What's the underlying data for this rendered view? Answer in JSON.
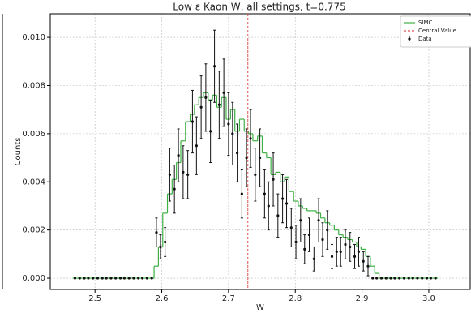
{
  "chart_data": {
    "type": "histogram-errorbar",
    "title": "Low ε Kaon W, all settings, t=0.775",
    "xlabel": "W",
    "ylabel": "Counts",
    "xlim": [
      2.433,
      3.062
    ],
    "ylim": [
      -0.00047,
      0.01098
    ],
    "xticks": [
      2.5,
      2.6,
      2.7,
      2.8,
      2.9,
      {
        "value": 3.0,
        "label": "3.0"
      }
    ],
    "yticks": [
      {
        "value": 0,
        "label": "0.000"
      },
      {
        "value": 0.002,
        "label": "0.002"
      },
      {
        "value": 0.004,
        "label": "0.004"
      },
      {
        "value": 0.006,
        "label": "0.006"
      },
      {
        "value": 0.008,
        "label": "0.008"
      },
      {
        "value": 0.01,
        "label": "0.010"
      }
    ],
    "grid": true,
    "legend": "upper right",
    "x": [
      2.47,
      2.477,
      2.484,
      2.49,
      2.497,
      2.504,
      2.511,
      2.517,
      2.524,
      2.531,
      2.538,
      2.544,
      2.551,
      2.558,
      2.565,
      2.571,
      2.578,
      2.585,
      2.592,
      2.598,
      2.605,
      2.612,
      2.619,
      2.625,
      2.632,
      2.639,
      2.646,
      2.652,
      2.659,
      2.666,
      2.673,
      2.679,
      2.686,
      2.693,
      2.7,
      2.706,
      2.713,
      2.72,
      2.727,
      2.733,
      2.74,
      2.747,
      2.754,
      2.76,
      2.767,
      2.774,
      2.781,
      2.787,
      2.794,
      2.801,
      2.808,
      2.814,
      2.821,
      2.828,
      2.835,
      2.841,
      2.848,
      2.855,
      2.862,
      2.868,
      2.875,
      2.882,
      2.889,
      2.895,
      2.902,
      2.909,
      2.916,
      2.922,
      2.929,
      2.936,
      2.943,
      2.949,
      2.956,
      2.963,
      2.97,
      2.976,
      2.983,
      2.99,
      2.997,
      3.003,
      3.01
    ],
    "series": [
      {
        "name": "SIMC",
        "color": "#3cb043",
        "style": "step",
        "values": [
          0,
          0,
          0,
          0,
          0,
          0,
          0,
          0,
          0,
          0,
          0,
          0,
          0,
          0,
          0,
          0,
          0,
          0,
          0.0005,
          0.0013,
          0.0027,
          0.0035,
          0.0041,
          0.0048,
          0.0057,
          0.0065,
          0.0068,
          0.0072,
          0.0075,
          0.0077,
          0.0074,
          0.0076,
          0.0071,
          0.0075,
          0.0066,
          0.007,
          0.0061,
          0.0066,
          0.0061,
          0.006,
          0.0057,
          0.0059,
          0.0052,
          0.005,
          0.0043,
          0.0044,
          0.004,
          0.0042,
          0.0036,
          0.0032,
          0.003,
          0.0029,
          0.0028,
          0.0028,
          0.0027,
          0.0025,
          0.0023,
          0.0022,
          0.002,
          0.0018,
          0.0017,
          0.0016,
          0.0015,
          0.0013,
          0.0012,
          0.0009,
          0.0005,
          0.0002,
          0,
          0,
          0,
          0,
          0,
          0,
          0,
          0,
          0,
          0,
          0,
          0,
          0
        ]
      },
      {
        "name": "Data",
        "color": "#111111",
        "style": "errorbar",
        "values": [
          0,
          0,
          0,
          0,
          0,
          0,
          0,
          0,
          0,
          0,
          0,
          0,
          0,
          0,
          0,
          0,
          0,
          0,
          0.0019,
          0.0013,
          0.0015,
          0.0043,
          0.0037,
          0.0051,
          0.0044,
          0.0043,
          0.0065,
          0.0055,
          0.0071,
          0.0075,
          0.0061,
          0.0088,
          0.0072,
          0.0077,
          0.0064,
          0.006,
          0.0052,
          0.0035,
          0.005,
          0.0058,
          0.0043,
          0.005,
          0.0035,
          0.003,
          0.0041,
          0.0026,
          0.0033,
          0.0031,
          0.0021,
          0.0015,
          0.0024,
          0.0012,
          0.0018,
          0.0008,
          0.0024,
          0.0016,
          0.002,
          0.0009,
          0.0011,
          0.0011,
          0.0014,
          0.0013,
          0.0009,
          0.0011,
          0.0007,
          0.0005,
          0,
          0,
          0,
          0,
          0,
          0,
          0,
          0,
          0,
          0,
          0,
          0,
          0,
          0,
          0
        ],
        "errors": [
          0,
          0,
          0,
          0,
          0,
          0,
          0,
          0,
          0,
          0,
          0,
          0,
          0,
          0,
          0,
          0,
          0,
          0,
          0.0006,
          0.0005,
          0.0006,
          0.0011,
          0.001,
          0.0011,
          0.0011,
          0.001,
          0.0013,
          0.0012,
          0.0013,
          0.0014,
          0.0013,
          0.0015,
          0.0014,
          0.0014,
          0.0013,
          0.0013,
          0.0012,
          0.001,
          0.0012,
          0.0012,
          0.0011,
          0.0012,
          0.001,
          0.001,
          0.0011,
          0.0009,
          0.001,
          0.001,
          0.0008,
          0.0007,
          0.0009,
          0.0006,
          0.0007,
          0.0005,
          0.0009,
          0.0007,
          0.0008,
          0.0005,
          0.0006,
          0.0006,
          0.0006,
          0.0006,
          0.0005,
          0.0006,
          0.0004,
          0.0004,
          0,
          0,
          0,
          0,
          0,
          0,
          0,
          0,
          0,
          0,
          0,
          0,
          0,
          0,
          0
        ]
      }
    ],
    "vlines": [
      {
        "name": "Central Value",
        "x": 2.729,
        "color": "#e05050"
      }
    ]
  }
}
